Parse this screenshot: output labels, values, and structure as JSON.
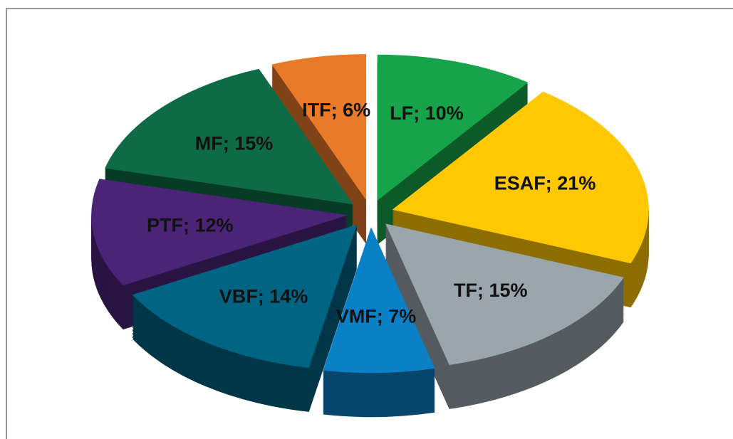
{
  "chart_data": {
    "type": "pie",
    "categories": [
      "LF",
      "ESAF",
      "TF",
      "VMF",
      "VBF",
      "PTF",
      "MF",
      "ITF"
    ],
    "values": [
      10,
      21,
      15,
      7,
      14,
      12,
      15,
      6
    ],
    "value_labels": [
      "LF; 10%",
      "ESAF; 21%",
      "TF; 15%",
      "VMF; 7%",
      "VBF; 14%",
      "PTF; 12%",
      "MF; 15%",
      "ITF; 6%"
    ],
    "colors": [
      "#17a34a",
      "#ffc800",
      "#9aa5ac",
      "#0a80c6",
      "#006482",
      "#4b2478",
      "#0e6b46",
      "#e97a2a"
    ]
  }
}
